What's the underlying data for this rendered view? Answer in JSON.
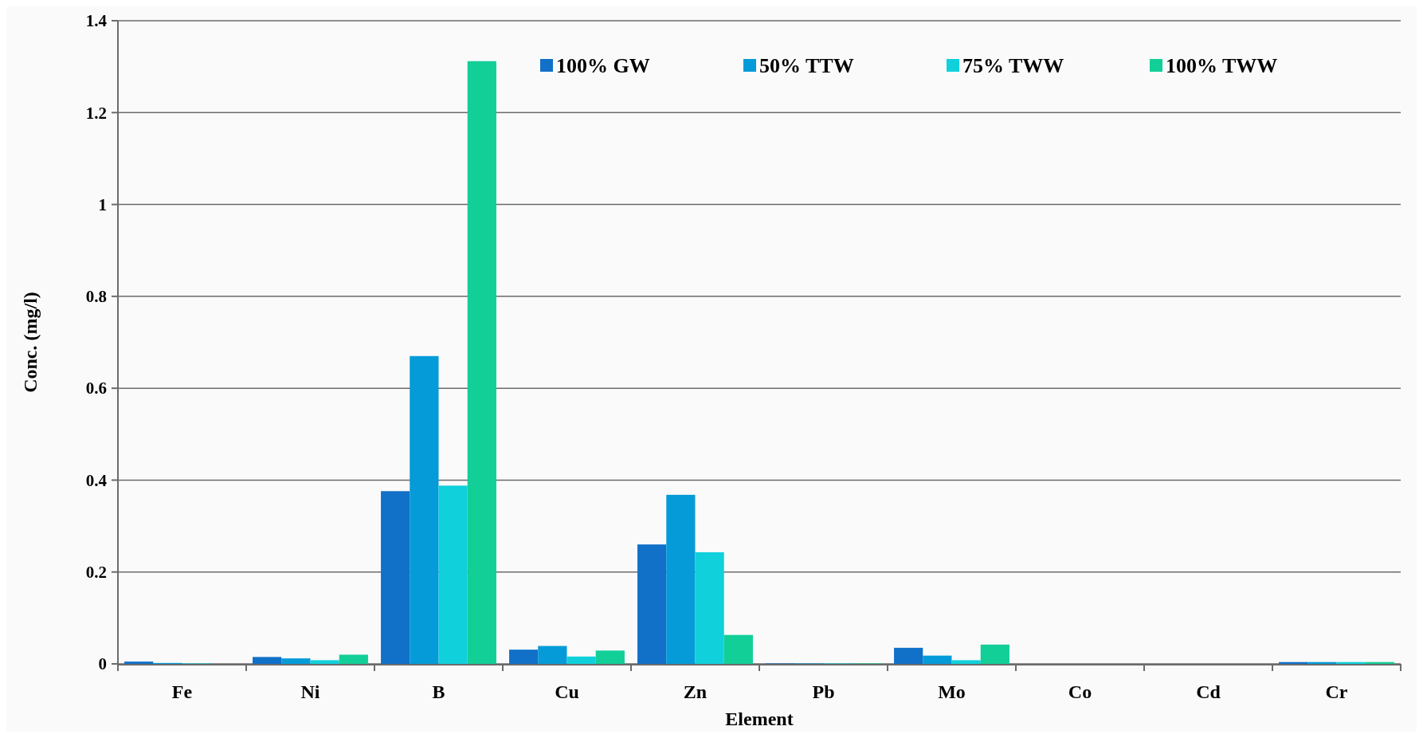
{
  "chart_data": {
    "type": "bar",
    "xlabel": "Element",
    "ylabel": "Conc. (mg/l)",
    "categories": [
      "Fe",
      "Ni",
      "B",
      "Cu",
      "Zn",
      "Pb",
      "Mo",
      "Co",
      "Cd",
      "Cr"
    ],
    "series": [
      {
        "name": "100% GW",
        "color": "#1170c8",
        "values": [
          0.005,
          0.015,
          0.376,
          0.031,
          0.26,
          0.001,
          0.035,
          0,
          0,
          0.004
        ]
      },
      {
        "name": "50% TTW",
        "color": "#049bd8",
        "values": [
          0.002,
          0.012,
          0.67,
          0.039,
          0.368,
          0.001,
          0.018,
          0,
          0,
          0.004
        ]
      },
      {
        "name": "75% TWW",
        "color": "#10d0dc",
        "values": [
          0.001,
          0.008,
          0.388,
          0.016,
          0.243,
          0.001,
          0.008,
          0,
          0,
          0.004
        ]
      },
      {
        "name": "100% TWW",
        "color": "#12cf98",
        "values": [
          0,
          0.02,
          1.312,
          0.029,
          0.063,
          0.001,
          0.042,
          0,
          0,
          0.004
        ]
      }
    ],
    "ylim": [
      0,
      1.4
    ],
    "yticks": [
      0,
      0.2,
      0.4,
      0.6,
      0.8,
      1,
      1.2,
      1.4
    ],
    "grid": "y",
    "legend": "top right"
  }
}
